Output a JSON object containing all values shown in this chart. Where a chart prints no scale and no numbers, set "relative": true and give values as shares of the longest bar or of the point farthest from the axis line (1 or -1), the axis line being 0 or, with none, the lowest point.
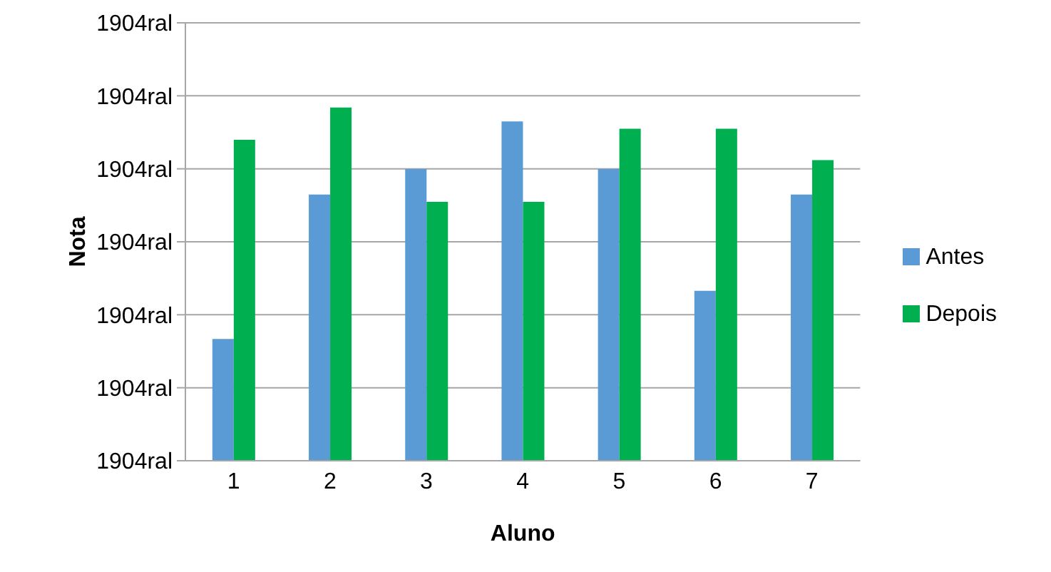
{
  "chart_data": {
    "type": "bar",
    "xlabel": "Aluno",
    "ylabel": "Nota",
    "relative": true,
    "categories": [
      "1",
      "2",
      "3",
      "4",
      "5",
      "6",
      "7"
    ],
    "series": [
      {
        "name": "Antes",
        "color": "#5b9bd5",
        "values": [
          0.345,
          0.754,
          0.826,
          0.961,
          0.826,
          0.481,
          0.754
        ]
      },
      {
        "name": "Depois",
        "color": "#00b050",
        "values": [
          0.909,
          1,
          0.733,
          0.733,
          0.94,
          0.94,
          0.851
        ]
      }
    ],
    "annotations": [
      "1904ral",
      "1904ral",
      "1904ral",
      "1904ral",
      "1904ral",
      "1904ral",
      "1904ral"
    ],
    "grid": "y",
    "legend": "right"
  }
}
